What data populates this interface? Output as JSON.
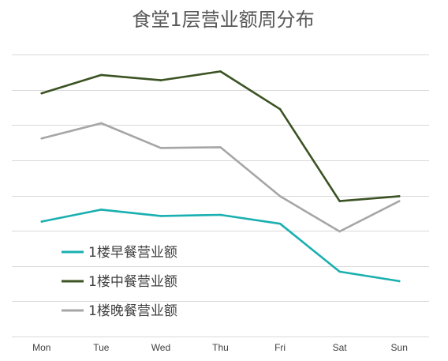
{
  "chart_data": {
    "type": "line",
    "title": "食堂1层营业额周分布",
    "xlabel": "",
    "ylabel": "",
    "categories": [
      "Mon",
      "Tue",
      "Wed",
      "Thu",
      "Fri",
      "Sat",
      "Sun"
    ],
    "ylim": [
      0,
      8
    ],
    "grid": true,
    "legend_position": "bottom-left",
    "series": [
      {
        "name": "1楼早餐营业额",
        "color": "#1aafb0",
        "values": [
          3.26,
          3.6,
          3.42,
          3.45,
          3.2,
          1.84,
          1.57
        ]
      },
      {
        "name": "1楼中餐营业额",
        "color": "#3b5323",
        "values": [
          6.9,
          7.42,
          7.27,
          7.52,
          6.45,
          3.84,
          3.98
        ]
      },
      {
        "name": "1楼晚餐营业额",
        "color": "#a6a6a6",
        "values": [
          5.62,
          6.05,
          5.35,
          5.37,
          3.98,
          2.98,
          3.84
        ]
      }
    ]
  }
}
